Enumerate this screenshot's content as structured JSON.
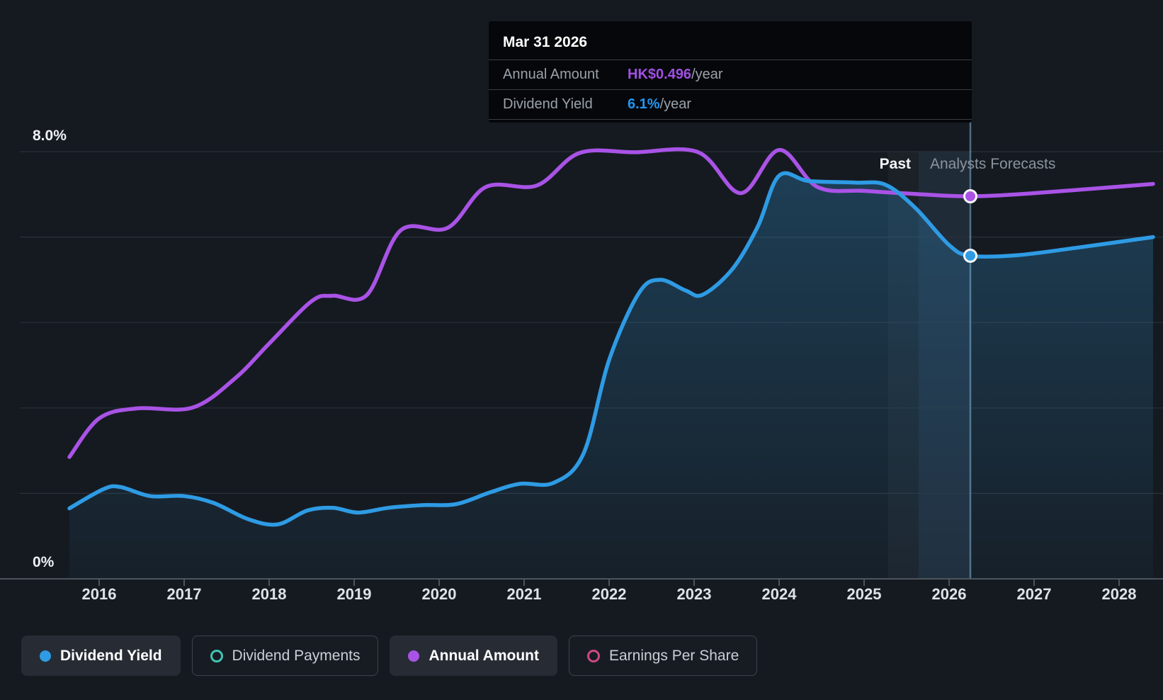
{
  "page": {
    "background": "#151a21"
  },
  "tooltip": {
    "title": "Mar 31 2026",
    "rows": [
      {
        "label": "Annual Amount",
        "value": "HK$0.496",
        "suffix": "/year",
        "color": "#a24fe3"
      },
      {
        "label": "Dividend Yield",
        "value": "6.1%",
        "suffix": "/year",
        "color": "#2196f3"
      }
    ]
  },
  "annotations": {
    "past": "Past",
    "forecast": "Analysts Forecasts"
  },
  "y_axis": {
    "top_label": "8.0%",
    "bottom_label": "0%"
  },
  "x_axis": {
    "years": [
      "2016",
      "2017",
      "2018",
      "2019",
      "2020",
      "2021",
      "2022",
      "2023",
      "2024",
      "2025",
      "2026",
      "2027",
      "2028"
    ]
  },
  "legend": [
    {
      "label": "Dividend Yield",
      "color": "#2e9be4",
      "style": "filled",
      "active": true
    },
    {
      "label": "Dividend Payments",
      "color": "#41c4b3",
      "style": "ring",
      "active": false
    },
    {
      "label": "Annual Amount",
      "color": "#a953e6",
      "style": "filled",
      "active": true
    },
    {
      "label": "Earnings Per Share",
      "color": "#cf4880",
      "style": "ring",
      "active": false
    }
  ],
  "chart_data": {
    "type": "line",
    "title": "Dividend yield history and analysts forecasts",
    "x_range": [
      2015.65,
      2028.4
    ],
    "x_ticks": [
      2016,
      2017,
      2018,
      2019,
      2020,
      2021,
      2022,
      2023,
      2024,
      2025,
      2026,
      2027,
      2028
    ],
    "y_left": {
      "label": "Dividend Yield",
      "unit": "%",
      "range": [
        0,
        8
      ],
      "gridlines_pct": [
        8,
        6.4,
        4.8,
        3.2,
        1.6,
        0
      ]
    },
    "grid": true,
    "legend_position": "bottom",
    "forecast_band_start_x": 2025.28,
    "forecast_divider_x": 2025.64,
    "hover": {
      "date": "Mar 31 2026",
      "x": 2026.25,
      "yield_pct": 6.1,
      "annual_amount_hkd": 0.496
    },
    "series": [
      {
        "name": "Dividend Yield",
        "unit": "%",
        "color": "#2e9be4",
        "area": true,
        "points": [
          [
            2015.65,
            1.32
          ],
          [
            2016.05,
            1.68
          ],
          [
            2016.25,
            1.72
          ],
          [
            2016.6,
            1.55
          ],
          [
            2017.0,
            1.55
          ],
          [
            2017.35,
            1.42
          ],
          [
            2017.75,
            1.12
          ],
          [
            2018.1,
            1.02
          ],
          [
            2018.45,
            1.28
          ],
          [
            2018.75,
            1.33
          ],
          [
            2019.05,
            1.24
          ],
          [
            2019.4,
            1.33
          ],
          [
            2019.8,
            1.38
          ],
          [
            2020.2,
            1.4
          ],
          [
            2020.6,
            1.62
          ],
          [
            2020.95,
            1.78
          ],
          [
            2021.35,
            1.8
          ],
          [
            2021.7,
            2.35
          ],
          [
            2022.0,
            4.1
          ],
          [
            2022.35,
            5.35
          ],
          [
            2022.6,
            5.6
          ],
          [
            2022.9,
            5.4
          ],
          [
            2023.1,
            5.32
          ],
          [
            2023.45,
            5.8
          ],
          [
            2023.75,
            6.6
          ],
          [
            2024.0,
            7.55
          ],
          [
            2024.35,
            7.45
          ],
          [
            2024.9,
            7.42
          ],
          [
            2025.25,
            7.38
          ],
          [
            2025.6,
            6.95
          ],
          [
            2026.0,
            6.25
          ],
          [
            2026.25,
            6.05
          ],
          [
            2026.8,
            6.06
          ],
          [
            2027.5,
            6.2
          ],
          [
            2028.4,
            6.4
          ]
        ]
      },
      {
        "name": "Annual Amount",
        "unit": "HK$",
        "color": "#a953e6",
        "area": false,
        "points": [
          [
            2015.65,
            0.158
          ],
          [
            2016.0,
            0.208
          ],
          [
            2016.45,
            0.221
          ],
          [
            2017.1,
            0.222
          ],
          [
            2017.6,
            0.26
          ],
          [
            2018.0,
            0.305
          ],
          [
            2018.5,
            0.36
          ],
          [
            2018.75,
            0.367
          ],
          [
            2019.15,
            0.368
          ],
          [
            2019.55,
            0.452
          ],
          [
            2020.1,
            0.455
          ],
          [
            2020.55,
            0.508
          ],
          [
            2021.15,
            0.51
          ],
          [
            2021.65,
            0.552
          ],
          [
            2022.3,
            0.553
          ],
          [
            2023.05,
            0.553
          ],
          [
            2023.55,
            0.5
          ],
          [
            2024.0,
            0.556
          ],
          [
            2024.45,
            0.508
          ],
          [
            2025.0,
            0.503
          ],
          [
            2025.6,
            0.499
          ],
          [
            2026.25,
            0.496
          ],
          [
            2027.0,
            0.5
          ],
          [
            2028.4,
            0.512
          ]
        ]
      }
    ]
  }
}
